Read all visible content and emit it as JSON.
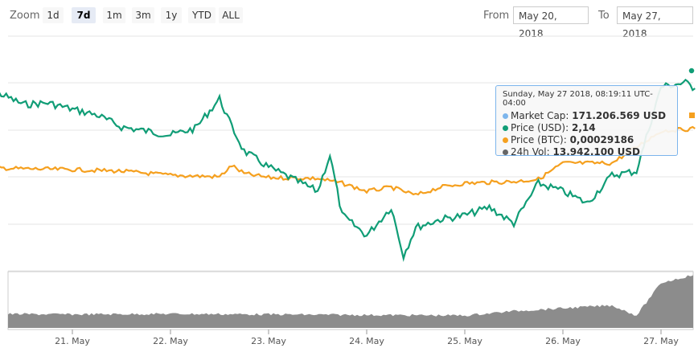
{
  "toolbar": {
    "zoom_label": "Zoom",
    "ranges": [
      {
        "label": "1d",
        "active": false
      },
      {
        "label": "7d",
        "active": true
      },
      {
        "label": "1m",
        "active": false
      },
      {
        "label": "3m",
        "active": false
      },
      {
        "label": "1y",
        "active": false
      },
      {
        "label": "YTD",
        "active": false
      },
      {
        "label": "ALL",
        "active": false
      }
    ],
    "from_label": "From",
    "from_value": "May 20, 2018",
    "to_label": "To",
    "to_value": "May 27, 2018"
  },
  "tooltip": {
    "header": "Sunday, May 27 2018, 08:19:11 UTC-04:00",
    "rows": [
      {
        "label": "Market Cap:",
        "value": "171.206.569 USD",
        "color": "#7cb5ec"
      },
      {
        "label": "Price (USD):",
        "value": "2,14",
        "color": "#109d76"
      },
      {
        "label": "Price (BTC):",
        "value": "0,00029186",
        "color": "#f5a01f"
      },
      {
        "label": "24h Vol:",
        "value": "13.942.100 USD",
        "color": "#666666"
      }
    ]
  },
  "chart_data": {
    "type": "line",
    "xlim": [
      "2018-05-20",
      "2018-05-27"
    ],
    "x_ticks": [
      "21. May",
      "22. May",
      "23. May",
      "24. May",
      "25. May",
      "26. May",
      "27. May"
    ],
    "colors": {
      "usd": "#109d76",
      "btc": "#f5a01f",
      "volume": "#8c8c8c",
      "marketcap": "#7cb5ec"
    },
    "series": [
      {
        "key": "usd",
        "x": [
          "2018-05-20 00:00",
          "2018-05-20 06:00",
          "2018-05-20 12:00",
          "2018-05-20 18:00",
          "2018-05-21 00:00",
          "2018-05-21 06:00",
          "2018-05-21 12:00",
          "2018-05-21 18:00",
          "2018-05-22 00:00",
          "2018-05-22 06:00",
          "2018-05-22 12:00",
          "2018-05-22 15:00",
          "2018-05-22 18:00",
          "2018-05-23 00:00",
          "2018-05-23 06:00",
          "2018-05-23 12:00",
          "2018-05-23 15:00",
          "2018-05-23 18:00",
          "2018-05-24 00:00",
          "2018-05-24 06:00",
          "2018-05-24 09:00",
          "2018-05-24 12:00",
          "2018-05-24 18:00",
          "2018-05-25 00:00",
          "2018-05-25 06:00",
          "2018-05-25 12:00",
          "2018-05-25 18:00",
          "2018-05-26 00:00",
          "2018-05-26 06:00",
          "2018-05-26 12:00",
          "2018-05-26 18:00",
          "2018-05-27 00:00",
          "2018-05-27 06:00",
          "2018-05-27 08:19"
        ],
        "values": [
          0.85,
          0.92,
          0.78,
          0.8,
          0.72,
          0.65,
          0.5,
          0.45,
          0.4,
          0.48,
          0.85,
          0.5,
          0.2,
          0.0,
          -0.15,
          -0.3,
          0.15,
          -0.6,
          -0.85,
          -0.5,
          -1.1,
          -0.75,
          -0.65,
          -0.6,
          -0.5,
          -0.7,
          -0.2,
          -0.3,
          -0.45,
          -0.1,
          -0.05,
          1.0,
          1.05,
          0.98
        ]
      },
      {
        "key": "btc",
        "x": [
          "2018-05-20 00:00",
          "2018-05-20 12:00",
          "2018-05-21 00:00",
          "2018-05-21 12:00",
          "2018-05-22 00:00",
          "2018-05-22 12:00",
          "2018-05-22 15:00",
          "2018-05-22 18:00",
          "2018-05-23 00:00",
          "2018-05-23 12:00",
          "2018-05-23 18:00",
          "2018-05-24 00:00",
          "2018-05-24 06:00",
          "2018-05-24 12:00",
          "2018-05-24 18:00",
          "2018-05-25 00:00",
          "2018-05-25 12:00",
          "2018-05-25 18:00",
          "2018-05-26 00:00",
          "2018-05-26 12:00",
          "2018-05-27 00:00",
          "2018-05-27 08:19"
        ],
        "values": [
          0.0,
          -0.02,
          -0.03,
          -0.05,
          -0.1,
          -0.12,
          0.02,
          -0.08,
          -0.13,
          -0.14,
          -0.2,
          -0.3,
          -0.25,
          -0.35,
          -0.25,
          -0.2,
          -0.18,
          -0.15,
          0.05,
          0.05,
          0.45,
          0.48
        ]
      },
      {
        "key": "volume",
        "x": [
          "2018-05-20 00:00",
          "2018-05-21 00:00",
          "2018-05-22 00:00",
          "2018-05-23 00:00",
          "2018-05-24 00:00",
          "2018-05-25 00:00",
          "2018-05-25 12:00",
          "2018-05-26 00:00",
          "2018-05-26 12:00",
          "2018-05-26 18:00",
          "2018-05-27 00:00",
          "2018-05-27 08:19"
        ],
        "values": [
          0.25,
          0.24,
          0.25,
          0.24,
          0.23,
          0.22,
          0.3,
          0.35,
          0.4,
          0.22,
          0.8,
          0.95
        ]
      }
    ]
  }
}
